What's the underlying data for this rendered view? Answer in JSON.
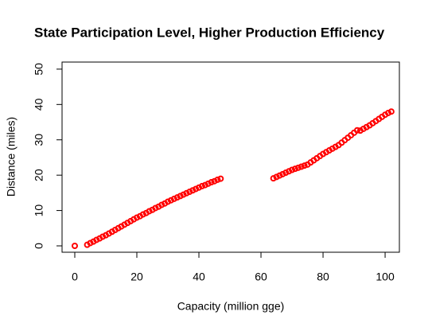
{
  "chart_data": {
    "type": "scatter",
    "title": "State Participation Level, Higher Production Efficiency",
    "x_label": "Capacity (million gge)",
    "y_label": "Distance (miles)",
    "color": "#ff0000",
    "xlim": [
      -4.1,
      104.6
    ],
    "ylim": [
      -1.8,
      52
    ],
    "xticks": [
      0,
      20,
      40,
      60,
      80,
      100
    ],
    "yticks": [
      0,
      10,
      20,
      30,
      40,
      50
    ],
    "x": [
      0,
      4,
      5,
      6,
      7,
      8,
      9,
      10,
      11,
      12,
      13,
      14,
      15,
      16,
      17,
      18,
      19,
      20,
      21,
      22,
      23,
      24,
      25,
      26,
      27,
      28,
      29,
      30,
      31,
      32,
      33,
      34,
      35,
      36,
      37,
      38,
      39,
      40,
      41,
      42,
      43,
      44,
      45,
      46,
      47,
      64,
      65,
      66,
      67,
      68,
      69,
      70,
      71,
      72,
      73,
      74,
      75,
      76,
      77,
      78,
      79,
      80,
      81,
      82,
      83,
      84,
      85,
      86,
      87,
      88,
      89,
      90,
      91,
      92,
      93,
      94,
      95,
      96,
      97,
      98,
      99,
      100,
      101,
      102
    ],
    "y": [
      0,
      0.3,
      0.8,
      1.2,
      1.7,
      2.1,
      2.6,
      3.0,
      3.5,
      4.0,
      4.5,
      5.0,
      5.5,
      6.0,
      6.5,
      7.0,
      7.5,
      8.0,
      8.4,
      8.9,
      9.3,
      9.8,
      10.2,
      10.7,
      11.1,
      11.6,
      12.0,
      12.5,
      12.9,
      13.3,
      13.7,
      14.1,
      14.5,
      14.9,
      15.3,
      15.7,
      16.1,
      16.5,
      16.9,
      17.2,
      17.6,
      18.0,
      18.3,
      18.7,
      19.0,
      19.1,
      19.5,
      19.9,
      20.3,
      20.7,
      21.1,
      21.5,
      21.8,
      22.1,
      22.4,
      22.7,
      23.0,
      23.6,
      24.2,
      24.8,
      25.4,
      26.0,
      26.5,
      27.0,
      27.5,
      28.0,
      28.5,
      29.2,
      29.9,
      30.6,
      31.3,
      32.0,
      32.7,
      32.6,
      33.1,
      33.6,
      34.1,
      34.7,
      35.3,
      35.9,
      36.5,
      37.1,
      37.6,
      38.0
    ]
  }
}
